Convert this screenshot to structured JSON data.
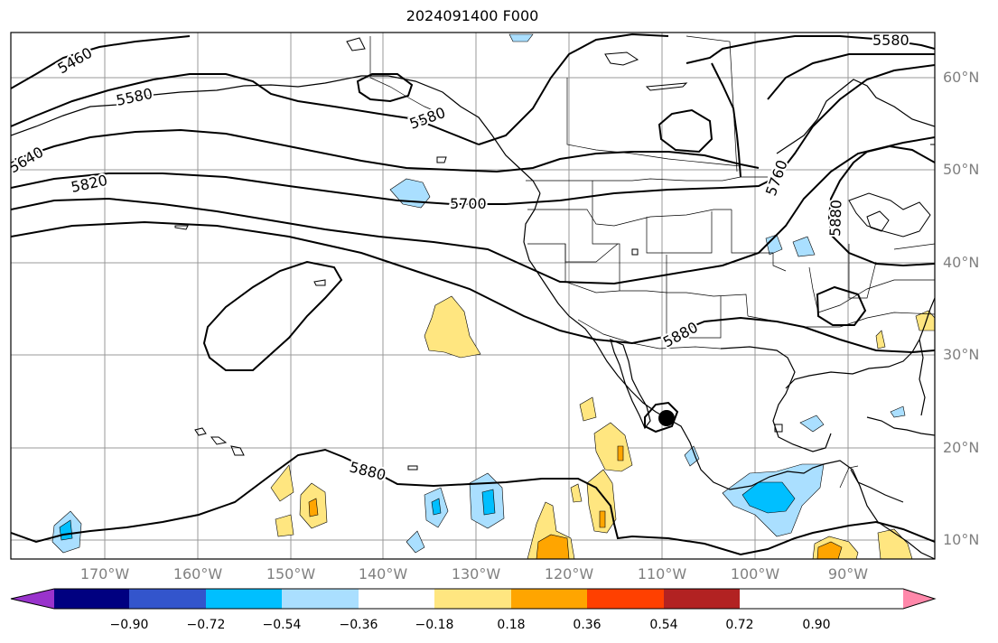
{
  "title": "2024091400 F000",
  "lat_labels": [
    "60°N",
    "50°N",
    "40°N",
    "30°N",
    "20°N",
    "10°N"
  ],
  "lon_labels": [
    "170°W",
    "160°W",
    "150°W",
    "140°W",
    "130°W",
    "120°W",
    "110°W",
    "100°W",
    "90°W"
  ],
  "contour_labels": [
    "5460",
    "5580",
    "5640",
    "5820",
    "5580",
    "5700",
    "5760",
    "5880",
    "5880",
    "5880",
    "5580"
  ],
  "colorbar": {
    "ticks": [
      "−0.90",
      "−0.72",
      "−0.54",
      "−0.36",
      "−0.18",
      "0.18",
      "0.36",
      "0.54",
      "0.72",
      "0.90"
    ],
    "colors": [
      "#9933cc",
      "#000080",
      "#3355cc",
      "#00bfff",
      "#aadfff",
      "#ffffff",
      "#ffe680",
      "#ffa500",
      "#ff4000",
      "#b22222",
      "#ff88aa"
    ]
  },
  "colors": {
    "land_line": "#000000",
    "grid": "#999999",
    "neg_light": "#aadfff",
    "neg_mid": "#00bfff",
    "pos_light": "#ffe680",
    "pos_mid": "#ffa500"
  }
}
